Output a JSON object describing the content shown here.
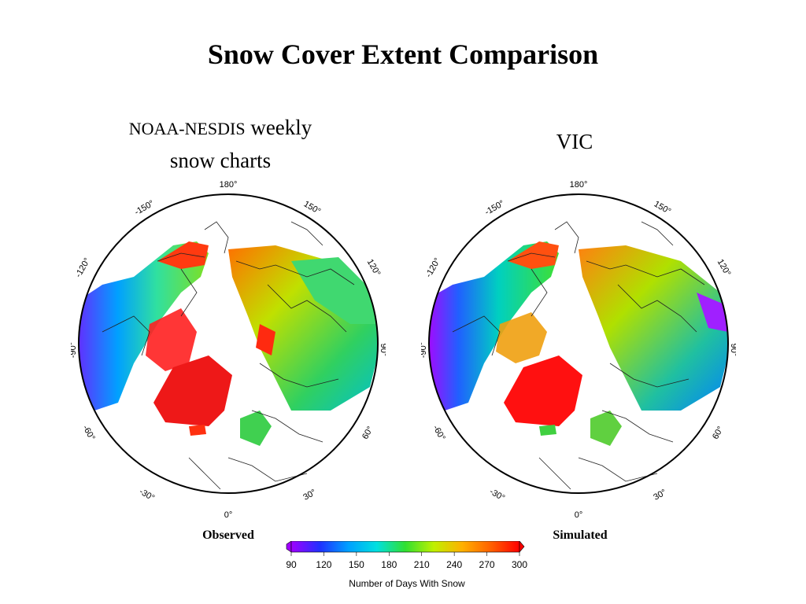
{
  "title": "Snow Cover Extent Comparison",
  "panels": {
    "left": {
      "heading_small": "NOAA-NESDIS",
      "heading_rest": " weekly",
      "heading_line2": "snow charts",
      "caption": "Observed"
    },
    "right": {
      "heading": "VIC",
      "caption": "Simulated"
    }
  },
  "longitude_labels": {
    "top": "180°",
    "upper_left": "-150°",
    "upper_right": "150°",
    "left_upper": "-120°",
    "right_upper": "120°",
    "left": "-90°",
    "right": "90°",
    "left_lower": "-60°",
    "right_lower": "60°",
    "lower_left": "-30°",
    "lower_right": "30°",
    "bottom": "0°"
  },
  "colorbar": {
    "ticks": [
      "90",
      "120",
      "150",
      "180",
      "210",
      "240",
      "270",
      "300"
    ],
    "label": "Number of Days With Snow",
    "colors": [
      "#a000ff",
      "#2030ff",
      "#00a0ff",
      "#00e0e0",
      "#30e030",
      "#c0f000",
      "#ffb000",
      "#ff6000",
      "#ff0000"
    ]
  },
  "legend_range": [
    90,
    300
  ]
}
